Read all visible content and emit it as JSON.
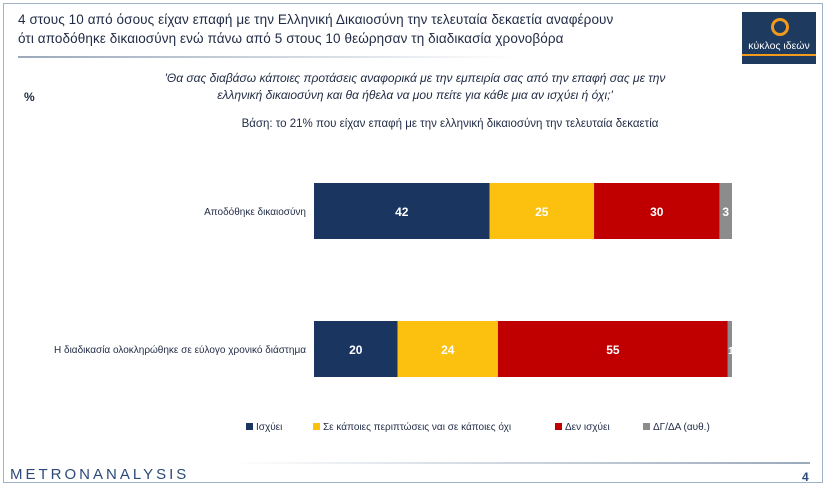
{
  "slide": {
    "headline_line1": "4 στους 10 από όσους είχαν επαφή με την Ελληνική Δικαιοσύνη την τελευταία δεκαετία αναφέρουν",
    "headline_line2": "ότι αποδόθηκε δικαιοσύνη ενώ πάνω από 5 στους 10 θεώρησαν τη διαδικασία χρονοβόρα",
    "question_line1": "'Θα σας διαβάσω κάποιες προτάσεις αναφορικά με την εμπειρία σας από την επαφή σας με την",
    "question_line2": "ελληνική δικαιοσύνη και θα ήθελα να μου πείτε για κάθε μια αν ισχύει ή όχι;'",
    "percent_label": "%",
    "base": "Βάση: το 21% που είχαν επαφή με την ελληνική δικαιοσύνη την τελευταία δεκαετία",
    "logo_text": "κύκλος ιδεών",
    "footer_brand": "METRONANALYSIS",
    "page_number": "4"
  },
  "chart_data": {
    "type": "bar",
    "orientation": "horizontal",
    "stacked": true,
    "xlim": [
      0,
      100
    ],
    "categories": [
      "Αποδόθηκε δικαιοσύνη",
      "Η διαδικασία ολοκληρώθηκε σε εύλογο χρονικό διάστημα"
    ],
    "series": [
      {
        "name": "Ισχύει",
        "color": "#1b3561",
        "values": [
          42,
          20
        ],
        "labels": [
          "42",
          "20"
        ]
      },
      {
        "name": "Σε κάποιες περιπτώσεις ναι σε κάποιες όχι",
        "color": "#fcc00f",
        "values": [
          25,
          24
        ],
        "labels": [
          "25",
          "24"
        ]
      },
      {
        "name": "Δεν ισχύει",
        "color": "#c00000",
        "values": [
          30,
          55
        ],
        "labels": [
          "30",
          "55"
        ]
      },
      {
        "name": "ΔΓ/ΔΑ (αυθ.)",
        "color": "#8c8c8c",
        "values": [
          3,
          1
        ],
        "labels": [
          "3",
          "1"
        ]
      }
    ],
    "legend_position": "bottom",
    "grid": false
  }
}
